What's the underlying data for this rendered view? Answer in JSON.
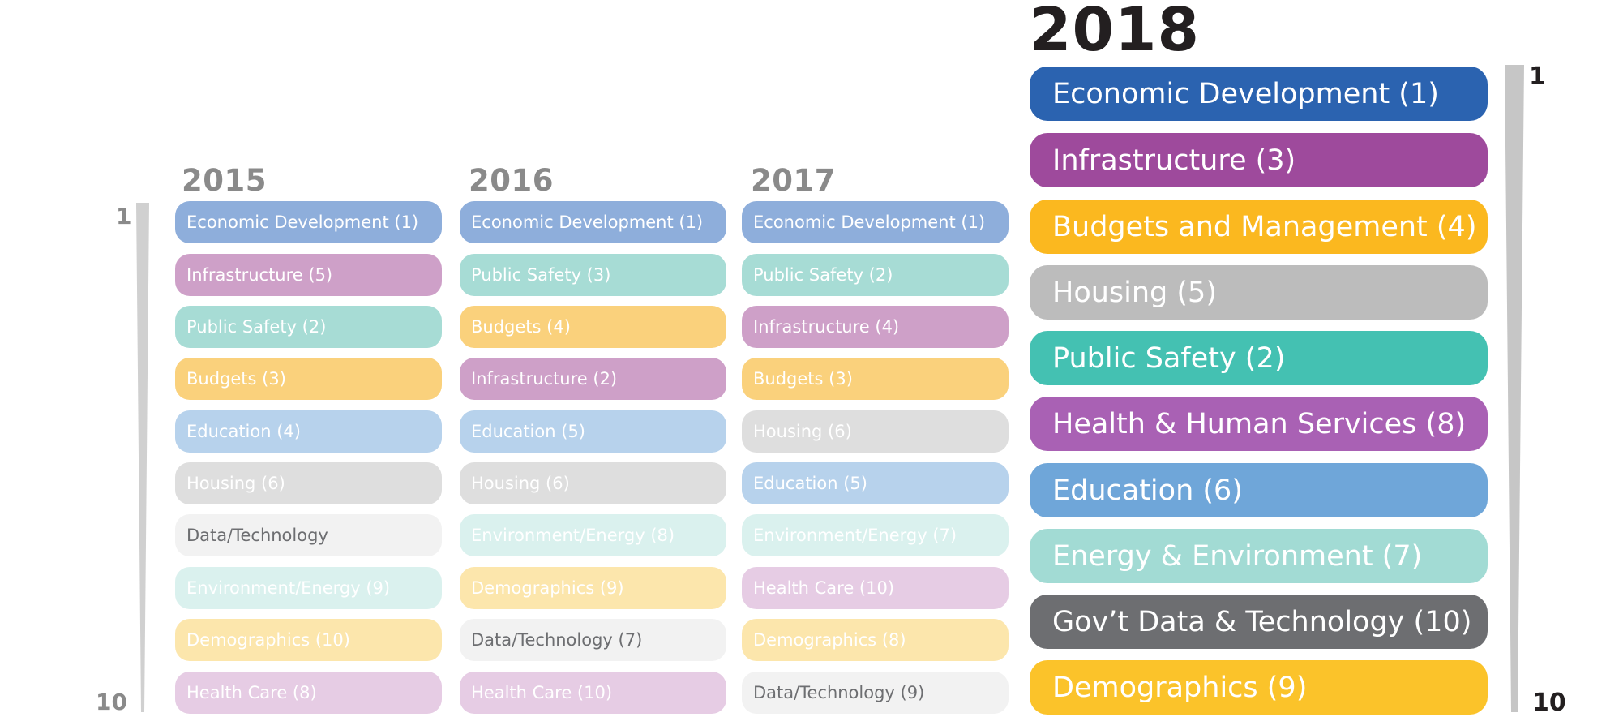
{
  "colors": {
    "econ_dark": "#2b63b0",
    "infra_dark": "#9e4a9c",
    "budget_dark": "#fbb81f",
    "housing_dark": "#bcbcbc",
    "safety_dark": "#44c1b2",
    "health_dark": "#a961b4",
    "edu_dark": "#6fa6d9",
    "energy_dark": "#a2dbd4",
    "data_dark": "#6d6e71",
    "demo_dark": "#fbc32a"
  },
  "scale_small": {
    "top": "1",
    "bottom": "10"
  },
  "scale_large": {
    "top": "1",
    "bottom": "10"
  },
  "columns": [
    {
      "year": "2015",
      "items": [
        {
          "label": "Economic Development (1)",
          "color": "#8eaedb"
        },
        {
          "label": "Infrastructure (5)",
          "color": "#cea0c8"
        },
        {
          "label": "Public Safety (2)",
          "color": "#a7dcd5"
        },
        {
          "label": "Budgets (3)",
          "color": "#fad17c"
        },
        {
          "label": "Education (4)",
          "color": "#b7d2ec"
        },
        {
          "label": "Housing (6)",
          "color": "#dedede"
        },
        {
          "label": "Data/Technology",
          "color": "#f2f2f2",
          "text_color": "#6d6e71"
        },
        {
          "label": "Environment/Energy (9)",
          "color": "#daf1ee"
        },
        {
          "label": "Demographics (10)",
          "color": "#fce6ac"
        },
        {
          "label": "Health Care (8)",
          "color": "#e6cce4"
        }
      ]
    },
    {
      "year": "2016",
      "items": [
        {
          "label": "Economic Development (1)",
          "color": "#8eaedb"
        },
        {
          "label": "Public Safety (3)",
          "color": "#a7dcd5"
        },
        {
          "label": "Budgets (4)",
          "color": "#fad17c"
        },
        {
          "label": "Infrastructure (2)",
          "color": "#cea0c8"
        },
        {
          "label": "Education (5)",
          "color": "#b7d2ec"
        },
        {
          "label": "Housing (6)",
          "color": "#dedede"
        },
        {
          "label": "Environment/Energy (8)",
          "color": "#daf1ee"
        },
        {
          "label": "Demographics (9)",
          "color": "#fce6ac"
        },
        {
          "label": "Data/Technology (7)",
          "color": "#f2f2f2",
          "text_color": "#6d6e71"
        },
        {
          "label": "Health Care (10)",
          "color": "#e6cce4"
        }
      ]
    },
    {
      "year": "2017",
      "items": [
        {
          "label": "Economic Development (1)",
          "color": "#8eaedb"
        },
        {
          "label": "Public Safety (2)",
          "color": "#a7dcd5"
        },
        {
          "label": "Infrastructure (4)",
          "color": "#cea0c8"
        },
        {
          "label": "Budgets (3)",
          "color": "#fad17c"
        },
        {
          "label": "Housing (6)",
          "color": "#dedede"
        },
        {
          "label": "Education (5)",
          "color": "#b7d2ec"
        },
        {
          "label": "Environment/Energy (7)",
          "color": "#daf1ee"
        },
        {
          "label": "Health Care (10)",
          "color": "#e6cce4"
        },
        {
          "label": "Demographics (8)",
          "color": "#fce6ac"
        },
        {
          "label": "Data/Technology (9)",
          "color": "#f2f2f2",
          "text_color": "#6d6e71"
        }
      ]
    },
    {
      "year": "2018",
      "items": [
        {
          "label": "Economic Development (1)",
          "color": "#2b63b0"
        },
        {
          "label": "Infrastructure (3)",
          "color": "#9e4a9c"
        },
        {
          "label": "Budgets and Management (4)",
          "color": "#fbb81f"
        },
        {
          "label": "Housing (5)",
          "color": "#bcbcbc"
        },
        {
          "label": "Public Safety (2)",
          "color": "#44c1b2"
        },
        {
          "label": "Health & Human Services (8)",
          "color": "#a961b4"
        },
        {
          "label": "Education (6)",
          "color": "#6fa6d9"
        },
        {
          "label": "Energy & Environment (7)",
          "color": "#a2dbd4"
        },
        {
          "label": "Gov’t Data & Technology (10)",
          "color": "#6d6e71"
        },
        {
          "label": "Demographics (9)",
          "color": "#fbc32a"
        }
      ]
    }
  ]
}
